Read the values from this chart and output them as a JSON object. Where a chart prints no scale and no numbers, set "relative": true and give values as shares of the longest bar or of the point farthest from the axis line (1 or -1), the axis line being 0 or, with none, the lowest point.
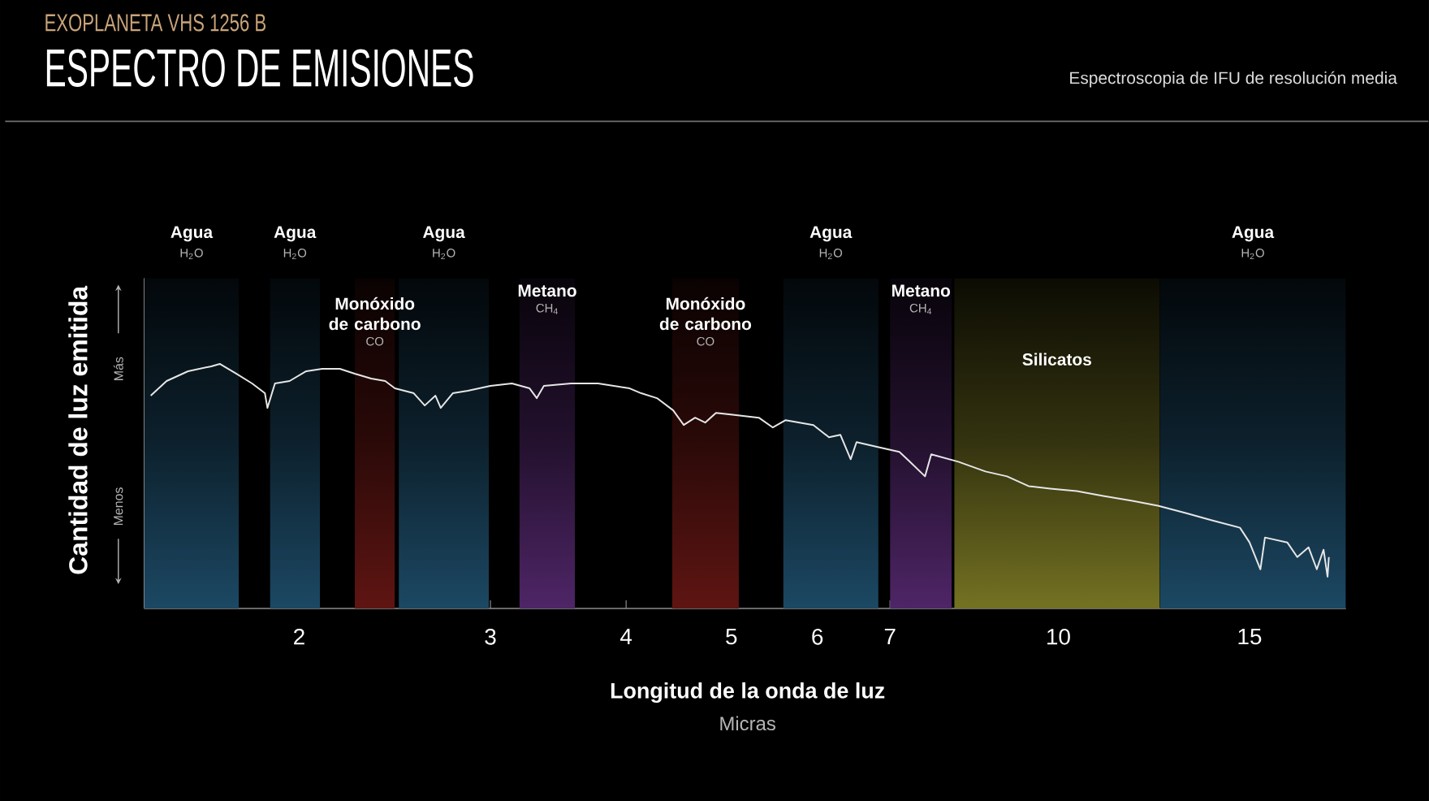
{
  "chart_data": {
    "type": "line",
    "title": "ESPECTRO DE EMISIONES",
    "subtitle": "EXOPLANETA VHS 1256 B",
    "xlabel": "Longitud de la onda de luz",
    "ylabel": "Cantidad de luz emitida",
    "annotations": [
      "Espectroscopia de IFU de resolución media",
      "Micras",
      "Más",
      "Menos",
      "H$_{2}$O",
      "H$_{2}$O",
      "CO",
      "H$_{2}$O",
      "CH$_{4}$",
      "CO",
      "H$_{2}$O",
      "CH$_{4}$",
      "H$_{2}$O"
    ],
    "relative": true,
    "log": "x",
    "xlim": [
      1.44,
      18.4
    ],
    "xticks": [
      2,
      3,
      4,
      5,
      6,
      7,
      10,
      15
    ],
    "x": [
      1.46,
      1.51,
      1.58,
      1.66,
      1.69,
      1.75,
      1.81,
      1.86,
      1.87,
      1.9,
      1.96,
      2.03,
      2.1,
      2.18,
      2.25,
      2.33,
      2.4,
      2.45,
      2.55,
      2.61,
      2.67,
      2.7,
      2.77,
      2.86,
      3.0,
      3.14,
      3.26,
      3.31,
      3.36,
      3.56,
      3.77,
      4.03,
      4.13,
      4.27,
      4.42,
      4.52,
      4.63,
      4.73,
      4.84,
      5.07,
      5.3,
      5.46,
      5.61,
      5.95,
      6.15,
      6.3,
      6.44,
      6.52,
      6.82,
      7.14,
      7.3,
      7.54,
      7.64,
      8.09,
      8.57,
      8.97,
      9.39,
      9.83,
      10.4,
      11.0,
      11.7,
      12.35,
      13.1,
      13.85,
      14.7,
      15.0,
      15.35,
      15.5,
      16.25,
      16.6,
      17.0,
      17.3,
      17.55,
      17.7,
      17.75
    ],
    "values": [
      0.87,
      0.93,
      0.97,
      0.99,
      1.0,
      0.96,
      0.92,
      0.88,
      0.82,
      0.92,
      0.93,
      0.97,
      0.98,
      0.98,
      0.96,
      0.94,
      0.93,
      0.9,
      0.88,
      0.83,
      0.87,
      0.82,
      0.88,
      0.89,
      0.91,
      0.92,
      0.9,
      0.86,
      0.91,
      0.92,
      0.92,
      0.9,
      0.88,
      0.86,
      0.81,
      0.75,
      0.78,
      0.76,
      0.8,
      0.79,
      0.78,
      0.74,
      0.77,
      0.75,
      0.7,
      0.71,
      0.61,
      0.68,
      0.66,
      0.64,
      0.6,
      0.54,
      0.63,
      0.6,
      0.56,
      0.54,
      0.5,
      0.49,
      0.48,
      0.46,
      0.44,
      0.42,
      0.39,
      0.36,
      0.33,
      0.27,
      0.16,
      0.29,
      0.27,
      0.21,
      0.25,
      0.16,
      0.24,
      0.13,
      0.21
    ],
    "color": "#e6e6e6",
    "marker": "none",
    "line_style": "solid",
    "bands": [
      {
        "axis": "x",
        "from": 1.44,
        "to": 1.76,
        "label": "Agua",
        "color": "#1c4863"
      },
      {
        "axis": "x",
        "from": 1.88,
        "to": 2.09,
        "label": "Agua",
        "color": "#1c4863"
      },
      {
        "axis": "x",
        "from": 2.25,
        "to": 2.45,
        "label": "Monóxido de carbono",
        "color": "#5e1512"
      },
      {
        "axis": "x",
        "from": 2.47,
        "to": 2.99,
        "label": "Agua",
        "color": "#1c4863"
      },
      {
        "axis": "x",
        "from": 3.19,
        "to": 3.59,
        "label": "Metano",
        "color": "#4e2566"
      },
      {
        "axis": "x",
        "from": 4.41,
        "to": 5.08,
        "label": "Monóxido de carbono",
        "color": "#5e1512"
      },
      {
        "axis": "x",
        "from": 5.58,
        "to": 6.83,
        "label": "Agua",
        "color": "#1c4863"
      },
      {
        "axis": "x",
        "from": 7.0,
        "to": 7.98,
        "label": "Metano",
        "color": "#4e2566"
      },
      {
        "axis": "x",
        "from": 12.4,
        "to": 18.4,
        "label": "Agua",
        "color": "#1c4863"
      },
      {
        "axis": "x",
        "from": 8.02,
        "to": 12.4,
        "label": "Silicatos",
        "color": "#737122"
      }
    ]
  }
}
